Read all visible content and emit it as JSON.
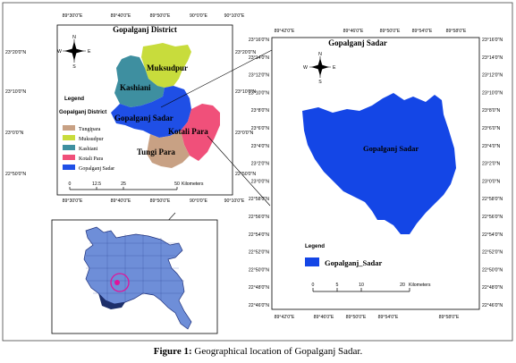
{
  "district_map": {
    "title": "Gopalganj District",
    "top_coords": [
      "89°30'0\"E",
      "89°40'0\"E",
      "89°50'0\"E",
      "90°0'0\"E",
      "90°10'0\"E"
    ],
    "bottom_coords": [
      "89°30'0\"E",
      "89°40'0\"E",
      "89°50'0\"E",
      "90°0'0\"E",
      "90°10'0\"E"
    ],
    "left_coords": [
      "23°20'0\"N",
      "23°10'0\"N",
      "23°0'0\"N",
      "22°50'0\"N"
    ],
    "right_coords": [
      "23°20'0\"N",
      "23°10'0\"N",
      "23°0'0\"N",
      "22°50'0\"N"
    ],
    "regions": [
      {
        "name": "Muksudpur",
        "color": "#c8dc3c"
      },
      {
        "name": "Kashiani",
        "color": "#3e8fa0"
      },
      {
        "name": "Gopalganj Sadar",
        "color": "#1f4fe6"
      },
      {
        "name": "Kotali Para",
        "color": "#f0507a"
      },
      {
        "name": "Tungi Para",
        "color": "#c8a184"
      }
    ],
    "legend": {
      "title": "Legend",
      "subtitle": "Gopalganj District",
      "items": [
        {
          "label": "Tungipara",
          "color": "#c8a184"
        },
        {
          "label": "Muksudpur",
          "color": "#c8dc3c"
        },
        {
          "label": "Kashiani",
          "color": "#3e8fa0"
        },
        {
          "label": "Kotali Para",
          "color": "#f0507a"
        },
        {
          "label": "Gopalganj Sadar",
          "color": "#1f4fe6"
        }
      ]
    },
    "scale": {
      "ticks": [
        "0",
        "12.5",
        "25",
        "50"
      ],
      "unit": "Kilometers"
    },
    "north": {
      "n": "N",
      "s": "S",
      "e": "E",
      "w": "W"
    }
  },
  "sadar_map": {
    "title": "Gopalganj Sadar",
    "region_label": "Gopalganj Sadar",
    "region_color": "#1446e6",
    "top_coords": [
      "89°42'0\"E",
      "89°46'0\"E",
      "89°50'0\"E",
      "89°54'0\"E",
      "89°58'0\"E"
    ],
    "bottom_coords": [
      "89°42'0\"E",
      "89°46'0\"E",
      "89°50'0\"E",
      "89°54'0\"E",
      "89°58'0\"E"
    ],
    "left_coords": [
      "23°16'0\"N",
      "23°14'0\"N",
      "23°12'0\"N",
      "23°10'0\"N",
      "23°8'0\"N",
      "23°6'0\"N",
      "23°4'0\"N",
      "23°2'0\"N",
      "23°0'0\"N",
      "22°58'0\"N",
      "22°56'0\"N",
      "22°54'0\"N",
      "22°52'0\"N",
      "22°50'0\"N",
      "22°48'0\"N",
      "22°46'0\"N"
    ],
    "right_coords": [
      "23°16'0\"N",
      "23°14'0\"N",
      "23°12'0\"N",
      "23°10'0\"N",
      "23°8'0\"N",
      "23°6'0\"N",
      "23°4'0\"N",
      "23°2'0\"N",
      "23°0'0\"N",
      "22°58'0\"N",
      "22°56'0\"N",
      "22°54'0\"N",
      "22°52'0\"N",
      "22°50'0\"N",
      "22°48'0\"N",
      "22°46'0\"N"
    ],
    "legend": {
      "title": "Legend",
      "item": "Gopalganj_Sadar"
    },
    "scale": {
      "ticks": [
        "0",
        "5",
        "10",
        "20"
      ],
      "unit": "Kilometers"
    },
    "north": {
      "n": "N",
      "s": "S",
      "e": "E",
      "w": "W"
    }
  },
  "country_map": {
    "fill_color": "#6e8ed8",
    "highlight_color": "#e0149a"
  },
  "caption": {
    "label": "Figure 1:",
    "text": "Geographical location of Gopalganj Sadar."
  }
}
